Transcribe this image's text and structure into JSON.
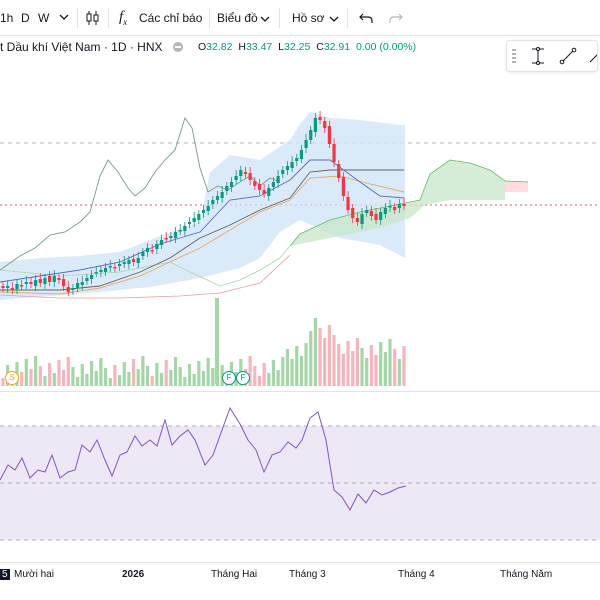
{
  "toolbar": {
    "interval_1h": "1h",
    "interval_d": "D",
    "interval_w": "W",
    "indicators_label": "Các chỉ báo",
    "chart_type_label": "Biểu đồ",
    "profile_label": "Hồ sơ",
    "fx_symbol": "f"
  },
  "symbol": {
    "title": "t Dầu khí Việt Nam · 1D · HNX"
  },
  "ohlc": {
    "o_label": "O",
    "o_value": "32.82",
    "h_label": "H",
    "h_value": "33.47",
    "l_label": "L",
    "l_value": "32.25",
    "c_label": "C",
    "c_value": "32.91",
    "change": "0.00 (0.00%)"
  },
  "events": {
    "s_marker": "S",
    "f_marker": "F"
  },
  "xaxis": {
    "labels": [
      "5",
      "Mười hai",
      "2026",
      "Tháng Hai",
      "Tháng 3",
      "Tháng 4",
      "Tháng Năm"
    ]
  },
  "colors": {
    "up": "#089981",
    "down": "#f23645",
    "cloud_up": "#a5d6a7",
    "cloud_down": "#ef9a9a",
    "band": "#cfe3f7",
    "rsi_bg": "#ede7f6",
    "rsi_line": "#7e57c2"
  },
  "chart_data": {
    "type": "candlestick",
    "ohlc": {
      "open": 32.82,
      "high": 33.47,
      "low": 32.25,
      "close": 32.91
    }
  }
}
